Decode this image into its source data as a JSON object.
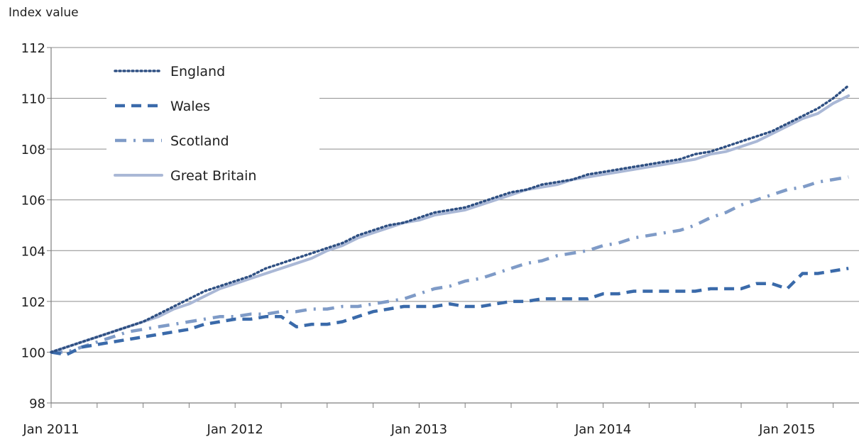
{
  "chart_data": {
    "type": "line",
    "ylabel": "Index value",
    "ylim": [
      98,
      112
    ],
    "y_ticks": [
      "98",
      "100",
      "102",
      "104",
      "106",
      "108",
      "110",
      "112"
    ],
    "x_tick_labels": [
      "Jan 2011",
      "Jan 2012",
      "Jan 2013",
      "Jan 2014",
      "Jan 2015"
    ],
    "x_range": [
      "2011-01",
      "2015-05"
    ],
    "grid": true,
    "legend_position": "top-left",
    "x": [
      "2011-01",
      "2011-02",
      "2011-03",
      "2011-04",
      "2011-05",
      "2011-06",
      "2011-07",
      "2011-08",
      "2011-09",
      "2011-10",
      "2011-11",
      "2011-12",
      "2012-01",
      "2012-02",
      "2012-03",
      "2012-04",
      "2012-05",
      "2012-06",
      "2012-07",
      "2012-08",
      "2012-09",
      "2012-10",
      "2012-11",
      "2012-12",
      "2013-01",
      "2013-02",
      "2013-03",
      "2013-04",
      "2013-05",
      "2013-06",
      "2013-07",
      "2013-08",
      "2013-09",
      "2013-10",
      "2013-11",
      "2013-12",
      "2014-01",
      "2014-02",
      "2014-03",
      "2014-04",
      "2014-05",
      "2014-06",
      "2014-07",
      "2014-08",
      "2014-09",
      "2014-10",
      "2014-11",
      "2014-12",
      "2015-01",
      "2015-02",
      "2015-03",
      "2015-04",
      "2015-05"
    ],
    "series": [
      {
        "name": "England",
        "color": "#2e4f82",
        "style": "dotted",
        "values": [
          100.0,
          100.2,
          100.4,
          100.6,
          100.8,
          101.0,
          101.2,
          101.5,
          101.8,
          102.1,
          102.4,
          102.6,
          102.8,
          103.0,
          103.3,
          103.5,
          103.7,
          103.9,
          104.1,
          104.3,
          104.6,
          104.8,
          105.0,
          105.1,
          105.3,
          105.5,
          105.6,
          105.7,
          105.9,
          106.1,
          106.3,
          106.4,
          106.6,
          106.7,
          106.8,
          107.0,
          107.1,
          107.2,
          107.3,
          107.4,
          107.5,
          107.6,
          107.8,
          107.9,
          108.1,
          108.3,
          108.5,
          108.7,
          109.0,
          109.3,
          109.6,
          110.0,
          110.5
        ]
      },
      {
        "name": "Wales",
        "color": "#3a6aaa",
        "style": "dashed",
        "values": [
          100.0,
          99.9,
          100.2,
          100.3,
          100.4,
          100.5,
          100.6,
          100.7,
          100.8,
          100.9,
          101.1,
          101.2,
          101.3,
          101.3,
          101.4,
          101.4,
          101.0,
          101.1,
          101.1,
          101.2,
          101.4,
          101.6,
          101.7,
          101.8,
          101.8,
          101.8,
          101.9,
          101.8,
          101.8,
          101.9,
          102.0,
          102.0,
          102.1,
          102.1,
          102.1,
          102.1,
          102.3,
          102.3,
          102.4,
          102.4,
          102.4,
          102.4,
          102.4,
          102.5,
          102.5,
          102.5,
          102.7,
          102.7,
          102.5,
          103.1,
          103.1,
          103.2,
          103.3
        ]
      },
      {
        "name": "Scotland",
        "color": "#7f9bc7",
        "style": "dash-dot",
        "values": [
          100.0,
          100.0,
          100.2,
          100.4,
          100.6,
          100.8,
          100.9,
          101.0,
          101.1,
          101.2,
          101.3,
          101.4,
          101.4,
          101.5,
          101.5,
          101.6,
          101.6,
          101.7,
          101.7,
          101.8,
          101.8,
          101.9,
          102.0,
          102.1,
          102.3,
          102.5,
          102.6,
          102.8,
          102.9,
          103.1,
          103.3,
          103.5,
          103.6,
          103.8,
          103.9,
          104.0,
          104.2,
          104.3,
          104.5,
          104.6,
          104.7,
          104.8,
          105.0,
          105.3,
          105.5,
          105.8,
          106.0,
          106.2,
          106.4,
          106.5,
          106.7,
          106.8,
          106.9
        ]
      },
      {
        "name": "Great Britain",
        "color": "#aab8d6",
        "style": "solid",
        "values": [
          100.0,
          100.2,
          100.4,
          100.6,
          100.8,
          101.0,
          101.2,
          101.4,
          101.7,
          101.9,
          102.2,
          102.5,
          102.7,
          102.9,
          103.1,
          103.3,
          103.5,
          103.7,
          104.0,
          104.2,
          104.5,
          104.7,
          104.9,
          105.1,
          105.2,
          105.4,
          105.5,
          105.6,
          105.8,
          106.0,
          106.2,
          106.4,
          106.5,
          106.6,
          106.8,
          106.9,
          107.0,
          107.1,
          107.2,
          107.3,
          107.4,
          107.5,
          107.6,
          107.8,
          107.9,
          108.1,
          108.3,
          108.6,
          108.9,
          109.2,
          109.4,
          109.8,
          110.1
        ]
      }
    ]
  }
}
